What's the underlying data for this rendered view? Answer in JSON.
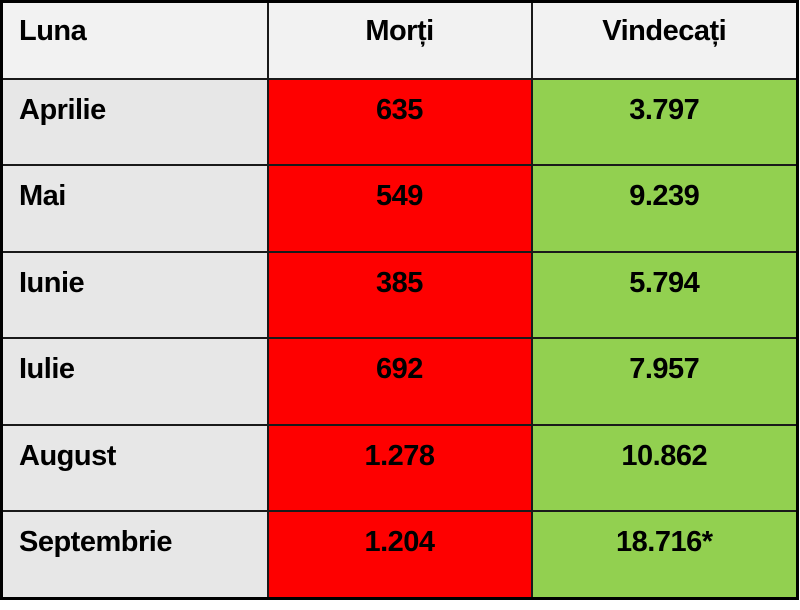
{
  "table": {
    "columns": {
      "month": "Luna",
      "deaths": "Morți",
      "recovered": "Vindecați"
    },
    "rows": [
      {
        "month": "Aprilie",
        "deaths": "635",
        "recovered": "3.797"
      },
      {
        "month": "Mai",
        "deaths": "549",
        "recovered": "9.239"
      },
      {
        "month": "Iunie",
        "deaths": "385",
        "recovered": "5.794"
      },
      {
        "month": "Iulie",
        "deaths": "692",
        "recovered": "7.957"
      },
      {
        "month": "August",
        "deaths": "1.278",
        "recovered": "10.862"
      },
      {
        "month": "Septembrie",
        "deaths": "1.204",
        "recovered": "18.716*"
      }
    ],
    "colors": {
      "header_bg": "#f2f2f2",
      "month_bg": "#e7e7e7",
      "deaths_bg": "#fe0000",
      "recovered_bg": "#92d050",
      "border": "#000000",
      "text": "#000000"
    }
  },
  "chart_data": {
    "type": "table",
    "title": "",
    "columns": [
      "Luna",
      "Morți",
      "Vindecați"
    ],
    "categories": [
      "Aprilie",
      "Mai",
      "Iunie",
      "Iulie",
      "August",
      "Septembrie"
    ],
    "series": [
      {
        "name": "Morți",
        "values": [
          635,
          549,
          385,
          692,
          1278,
          1204
        ]
      },
      {
        "name": "Vindecați",
        "values": [
          3797,
          9239,
          5794,
          7957,
          10862,
          18716
        ]
      }
    ],
    "annotations": [
      "18.716* (valoare marcată cu asterisc)"
    ]
  }
}
